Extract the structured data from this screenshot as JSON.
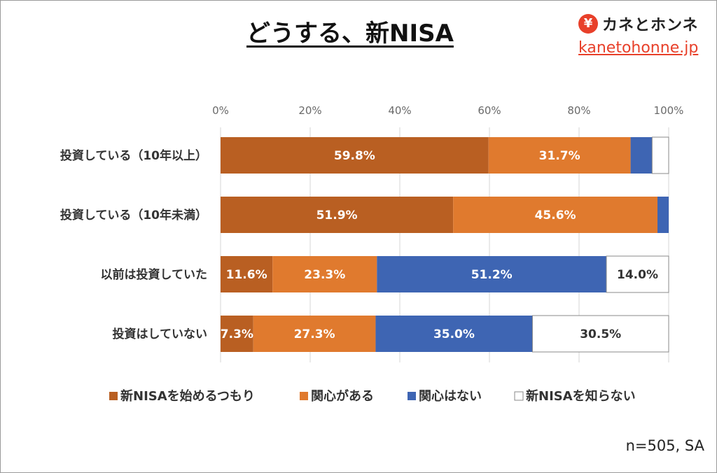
{
  "title": "どうする、新NISA",
  "logo": {
    "symbol": "¥",
    "name": "カネとホンネ",
    "url": "kanetohonne.jp"
  },
  "footnote": "n=505, SA",
  "colors": {
    "accent": "#e8402a",
    "series": [
      "#b95f22",
      "#e07a2e",
      "#3e65b3",
      "#ffffff"
    ]
  },
  "chart_data": {
    "type": "bar",
    "orientation": "horizontal",
    "stacked": true,
    "title": "どうする、新NISA",
    "xlim": [
      0,
      100
    ],
    "xticks": [
      "0%",
      "20%",
      "40%",
      "60%",
      "80%",
      "100%"
    ],
    "grid": true,
    "legend_position": "bottom",
    "categories": [
      "投資している（10年以上）",
      "投資している（10年未満）",
      "以前は投資していた",
      "投資はしていない"
    ],
    "series": [
      {
        "name": "新NISAを始めるつもり",
        "values": [
          59.8,
          51.9,
          11.6,
          7.3
        ],
        "labels": [
          "59.8%",
          "51.9%",
          "11.6%",
          "7.3%"
        ]
      },
      {
        "name": "関心がある",
        "values": [
          31.7,
          45.6,
          23.3,
          27.3
        ],
        "labels": [
          "31.7%",
          "45.6%",
          "23.3%",
          "27.3%"
        ]
      },
      {
        "name": "関心はない",
        "values": [
          4.8,
          2.5,
          51.2,
          35.0
        ],
        "labels": [
          "",
          "",
          "51.2%",
          "35.0%"
        ]
      },
      {
        "name": "新NISAを知らない",
        "values": [
          3.7,
          0,
          14.0,
          30.5
        ],
        "labels": [
          "",
          "",
          "14.0%",
          "30.5%"
        ]
      }
    ]
  }
}
